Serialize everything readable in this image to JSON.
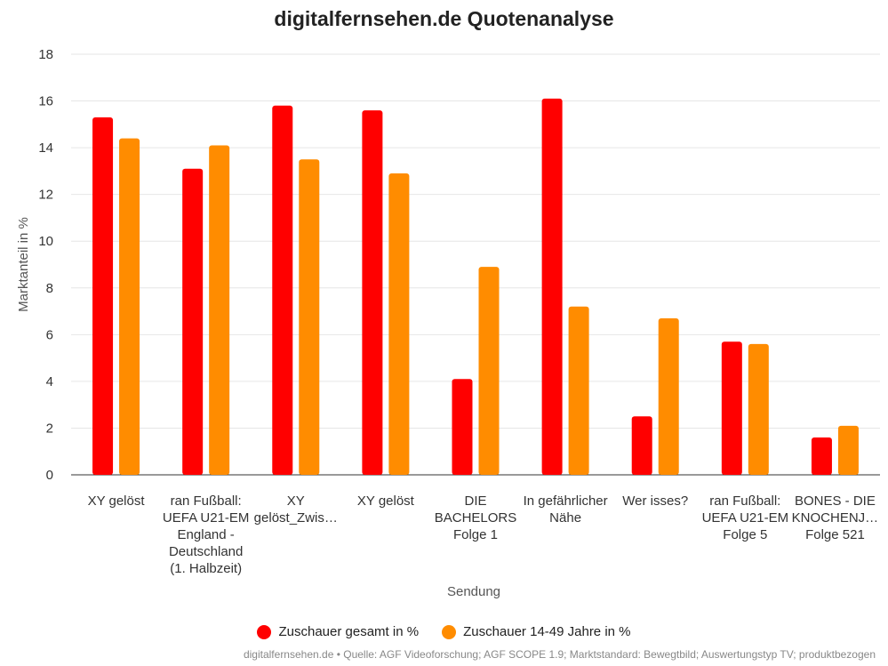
{
  "chart_data": {
    "type": "bar",
    "title": "digitalfernsehen.de Quotenanalyse",
    "xlabel": "Sendung",
    "ylabel": "Marktanteil in %",
    "ylim": [
      0,
      18
    ],
    "yticks": [
      0,
      2,
      4,
      6,
      8,
      10,
      12,
      14,
      16,
      18
    ],
    "grid": true,
    "legend_position": "bottom",
    "categories": [
      [
        "XY gelöst"
      ],
      [
        "ran Fußball:",
        "UEFA U21-EM",
        "England -",
        "Deutschland",
        "(1. Halbzeit)"
      ],
      [
        "XY",
        "gelöst_Zwis…"
      ],
      [
        "XY gelöst"
      ],
      [
        "DIE",
        "BACHELORS",
        "Folge 1"
      ],
      [
        "In gefährlicher",
        "Nähe"
      ],
      [
        "Wer isses?"
      ],
      [
        "ran Fußball:",
        "UEFA U21-EM",
        "Folge 5"
      ],
      [
        "BONES - DIE",
        "KNOCHENJ…",
        "Folge 521"
      ]
    ],
    "series": [
      {
        "name": "Zuschauer gesamt in %",
        "color": "#ff0000",
        "values": [
          15.3,
          13.1,
          15.8,
          15.6,
          4.1,
          16.1,
          2.5,
          5.7,
          1.6
        ]
      },
      {
        "name": "Zuschauer 14-49 Jahre in %",
        "color": "#ff8c00",
        "values": [
          14.4,
          14.1,
          13.5,
          12.9,
          8.9,
          7.2,
          6.7,
          5.6,
          2.1
        ]
      }
    ]
  },
  "legend": {
    "items": [
      {
        "label": "Zuschauer gesamt in %",
        "color": "#ff0000"
      },
      {
        "label": "Zuschauer 14-49 Jahre in %",
        "color": "#ff8c00"
      }
    ]
  },
  "footer": {
    "source": "digitalfernsehen.de • Quelle: AGF Videoforschung; AGF SCOPE 1.9; Marktstandard: Bewegtbild; Auswertungstyp TV; produktbezogen"
  }
}
